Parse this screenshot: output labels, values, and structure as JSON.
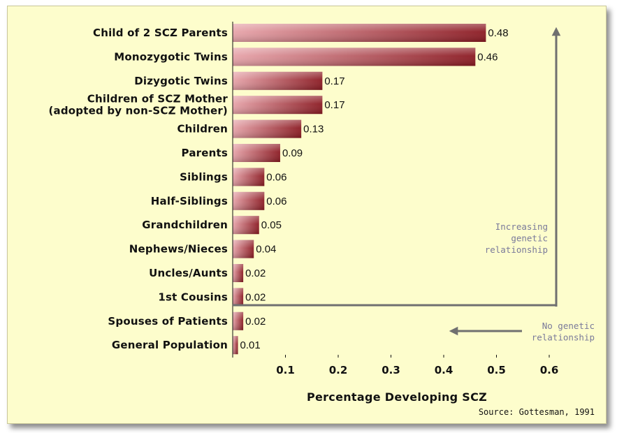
{
  "chart_data": {
    "type": "bar",
    "orientation": "horizontal",
    "categories": [
      [
        "Child of 2 SCZ Parents"
      ],
      [
        "Monozygotic Twins"
      ],
      [
        "Dizygotic Twins"
      ],
      [
        "Children of SCZ Mother",
        "(adopted by non-SCZ Mother)"
      ],
      [
        "Children"
      ],
      [
        "Parents"
      ],
      [
        "Siblings"
      ],
      [
        "Half-Siblings"
      ],
      [
        "Grandchildren"
      ],
      [
        "Nephews/Nieces"
      ],
      [
        "Uncles/Aunts"
      ],
      [
        "1st Cousins"
      ],
      [
        "Spouses of Patients"
      ],
      [
        "General Population"
      ]
    ],
    "values": [
      0.48,
      0.46,
      0.17,
      0.17,
      0.13,
      0.09,
      0.06,
      0.06,
      0.05,
      0.04,
      0.02,
      0.02,
      0.02,
      0.01
    ],
    "value_labels": [
      "0.48",
      "0.46",
      "0.17",
      "0.17",
      "0.13",
      "0.09",
      "0.06",
      "0.06",
      "0.05",
      "0.04",
      "0.02",
      "0.02",
      "0.02",
      "0.01"
    ],
    "xlim": [
      0,
      0.6
    ],
    "xticks": [
      0.1,
      0.2,
      0.3,
      0.4,
      0.5,
      0.6
    ],
    "xtick_labels": [
      "0.1",
      "0.2",
      "0.3",
      "0.4",
      "0.5",
      "0.6"
    ],
    "xlabel": "Percentage Developing SCZ",
    "ylabel": "",
    "title": "",
    "grid": false,
    "bar_color": "#8b1a22",
    "bar_highlight_color": "#e7a4aa",
    "annotations": {
      "increasing": [
        "Increasing",
        "genetic",
        "relationship"
      ],
      "no_genetic": [
        "No genetic",
        "relationship"
      ],
      "source": "Source: Gottesman, 1991"
    },
    "annotation_color": "#7a7a9a",
    "arrow_color": "#707070"
  }
}
